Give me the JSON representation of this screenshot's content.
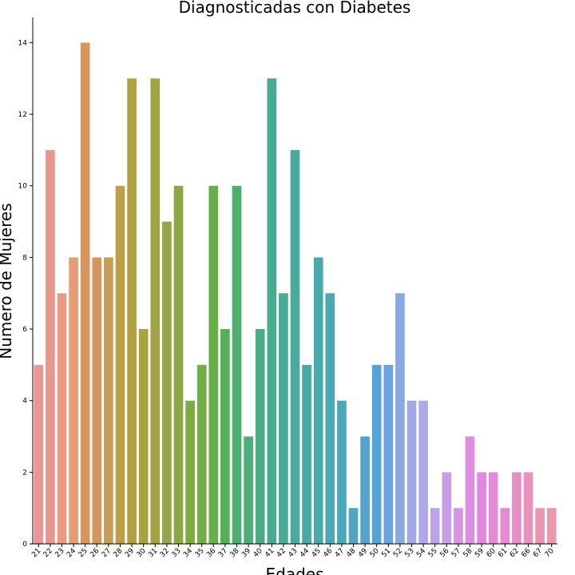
{
  "chart_data": {
    "type": "bar",
    "title": "Diagnosticadas con Diabetes",
    "xlabel": "Edades",
    "ylabel": "Numero de Mujeres",
    "ylim": [
      0,
      14.7
    ],
    "yticks": [
      0,
      2,
      4,
      6,
      8,
      10,
      12,
      14
    ],
    "grid": false,
    "categories": [
      "21",
      "22",
      "23",
      "24",
      "25",
      "26",
      "27",
      "28",
      "29",
      "30",
      "31",
      "32",
      "33",
      "34",
      "35",
      "36",
      "37",
      "38",
      "39",
      "40",
      "41",
      "42",
      "43",
      "44",
      "45",
      "46",
      "47",
      "48",
      "49",
      "50",
      "51",
      "52",
      "53",
      "54",
      "55",
      "56",
      "57",
      "58",
      "59",
      "60",
      "61",
      "62",
      "66",
      "67",
      "70"
    ],
    "values": [
      5,
      11,
      7,
      8,
      14,
      8,
      8,
      10,
      13,
      6,
      13,
      9,
      10,
      4,
      5,
      10,
      6,
      10,
      3,
      6,
      13,
      7,
      11,
      5,
      8,
      7,
      4,
      1,
      3,
      5,
      5,
      7,
      4,
      4,
      1,
      2,
      1,
      3,
      2,
      2,
      1,
      2,
      2,
      1,
      1
    ],
    "colors": [
      "#e99698",
      "#e9968f",
      "#e99a84",
      "#e59d76",
      "#d8945c",
      "#d2975d",
      "#c89d56",
      "#bd9f4a",
      "#b3a140",
      "#a8a33e",
      "#9ea443",
      "#95a548",
      "#8aa746",
      "#7fab43",
      "#72ad47",
      "#66b049",
      "#55b05a",
      "#4dae6d",
      "#4bad79",
      "#49ac85",
      "#48ab8f",
      "#49aa97",
      "#4aaa9e",
      "#4aa9a4",
      "#4aa9aa",
      "#49a8b2",
      "#4aa7b9",
      "#4fa5c4",
      "#53a3cd",
      "#56a3d8",
      "#6aa3e1",
      "#8aa8e2",
      "#a2a8e6",
      "#aea7ea",
      "#bba3ea",
      "#c99de6",
      "#d596e2",
      "#dc8fe0",
      "#e386dd",
      "#e688d8",
      "#e78ad0",
      "#e88ec6",
      "#e892bd",
      "#e996b4",
      "#e999ab"
    ]
  }
}
